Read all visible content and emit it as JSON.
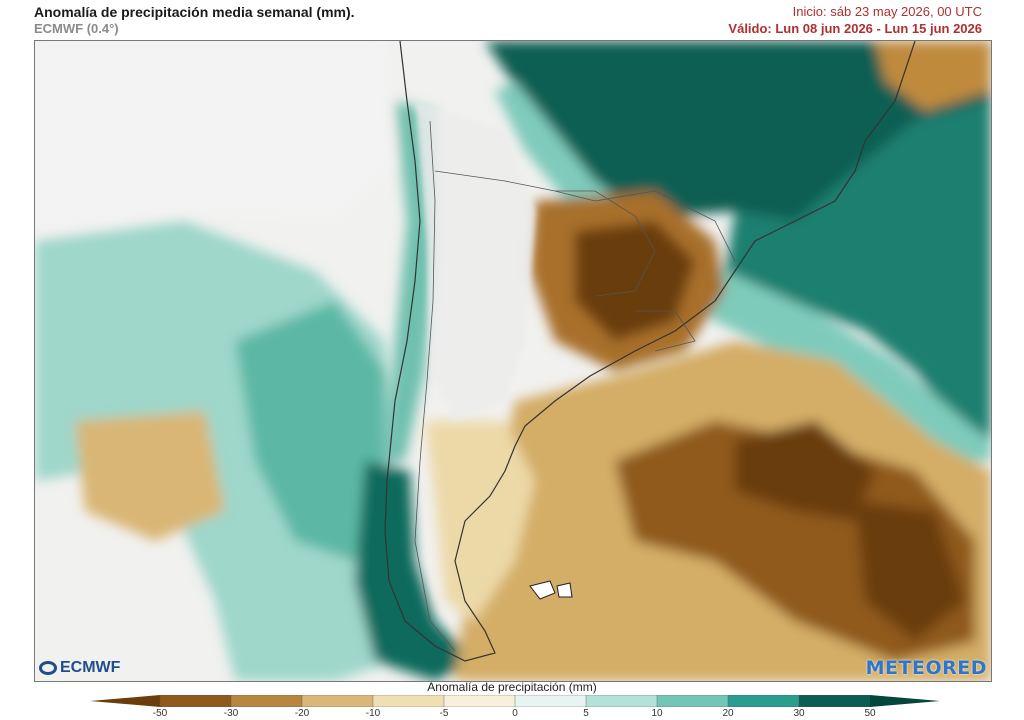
{
  "header": {
    "title": "Anomalía de precipitación media semanal (mm).",
    "model": "ECMWF (0.4°)",
    "init": "Inicio:  sáb 23 may 2026, 00 UTC",
    "valid": "Válido: Lun 08 jun 2026 - Lun 15 jun 2026"
  },
  "logos": {
    "left": "ECMWF",
    "right": "METEORED"
  },
  "colorbar": {
    "title": "Anomalía de precipitación (mm)",
    "ticks": [
      "-50",
      "-30",
      "-20",
      "-10",
      "-5",
      "0",
      "5",
      "10",
      "20",
      "30",
      "50"
    ],
    "colors": [
      "#6b3d0c",
      "#8f5a1c",
      "#b88640",
      "#d8b778",
      "#efe0b4",
      "#f7f1dc",
      "#e8f4f1",
      "#b4e2d9",
      "#73c6b6",
      "#2a9d8f",
      "#0c5e52",
      "#03463c"
    ]
  },
  "colors": {
    "dry_strong": "#6b3d0c",
    "dry_medium": "#b88640",
    "dry_light": "#e6cf98",
    "wet_light": "#b4e2d9",
    "wet_medium": "#5bb8a5",
    "wet_strong": "#0c5e52",
    "land_neutral": "#efefef"
  }
}
